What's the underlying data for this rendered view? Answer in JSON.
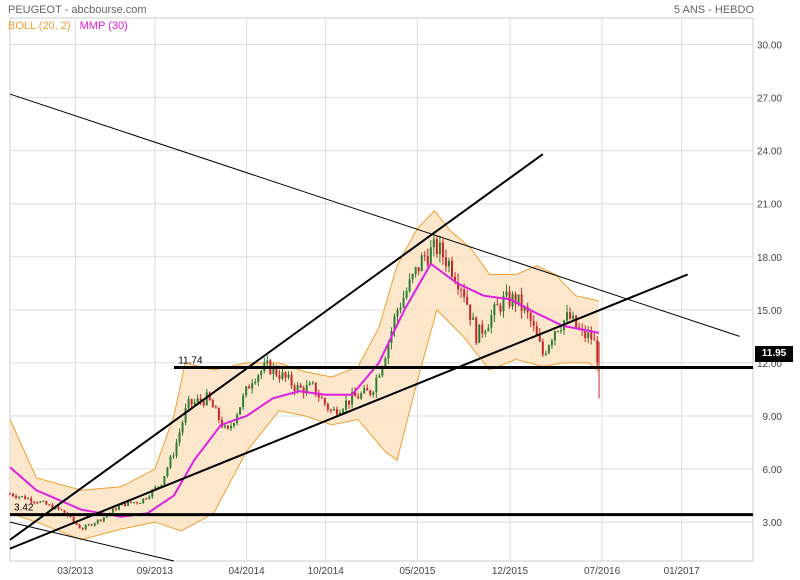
{
  "header": {
    "title": "PEUGEOT - abcbourse.com",
    "period": "5 ANS - HEBDO"
  },
  "legend": [
    {
      "label": "BOLL (20, 2)",
      "color": "#f0a030"
    },
    {
      "label": "MMP (30)",
      "color": "#e020e0"
    }
  ],
  "colors": {
    "band_fill": "#fbe3c4",
    "band_line": "#f0a030",
    "ma": "#e020e0",
    "up": "#2e7d32",
    "down": "#c62828",
    "grid": "#dddddd"
  },
  "chart_data": {
    "type": "line",
    "title": "PEUGEOT - abcbourse.com",
    "subtitle": "5 ANS - HEBDO",
    "x_ticks": [
      "03/2013",
      "09/2013",
      "04/2014",
      "10/2014",
      "05/2015",
      "12/2015",
      "07/2016",
      "01/2017"
    ],
    "y_ticks": [
      "3.00",
      "6.00",
      "9.00",
      "12.00",
      "15.00",
      "18.00",
      "21.00",
      "24.00",
      "27.00",
      "30.00"
    ],
    "ylim": [
      0.8,
      31.5
    ],
    "current_price": "11.95",
    "hlines": [
      {
        "label": "11.74",
        "value": 11.74
      },
      {
        "label": "3.42",
        "value": 3.42
      }
    ],
    "price_path": [
      {
        "date": "2012-10-01",
        "value": 4.6
      },
      {
        "date": "2012-12-01",
        "value": 4.2
      },
      {
        "date": "2013-02-01",
        "value": 3.6
      },
      {
        "date": "2013-03-15",
        "value": 2.6
      },
      {
        "date": "2013-05-01",
        "value": 3.2
      },
      {
        "date": "2013-06-15",
        "value": 4.0
      },
      {
        "date": "2013-08-01",
        "value": 4.2
      },
      {
        "date": "2013-09-15",
        "value": 5.2
      },
      {
        "date": "2013-10-15",
        "value": 7.0
      },
      {
        "date": "2013-11-15",
        "value": 9.6
      },
      {
        "date": "2014-01-01",
        "value": 10.0
      },
      {
        "date": "2014-02-15",
        "value": 8.0
      },
      {
        "date": "2014-03-15",
        "value": 9.5
      },
      {
        "date": "2014-04-15",
        "value": 11.2
      },
      {
        "date": "2014-05-20",
        "value": 11.8
      },
      {
        "date": "2014-06-20",
        "value": 11.3
      },
      {
        "date": "2014-08-01",
        "value": 10.5
      },
      {
        "date": "2014-09-01",
        "value": 10.6
      },
      {
        "date": "2014-10-15",
        "value": 9.2
      },
      {
        "date": "2014-12-01",
        "value": 10.0
      },
      {
        "date": "2015-01-15",
        "value": 10.4
      },
      {
        "date": "2015-02-15",
        "value": 12.5
      },
      {
        "date": "2015-03-15",
        "value": 15.0
      },
      {
        "date": "2015-04-15",
        "value": 16.5
      },
      {
        "date": "2015-05-15",
        "value": 18.0
      },
      {
        "date": "2015-06-15",
        "value": 18.5
      },
      {
        "date": "2015-07-15",
        "value": 17.6
      },
      {
        "date": "2015-08-15",
        "value": 16.2
      },
      {
        "date": "2015-09-15",
        "value": 13.5
      },
      {
        "date": "2015-10-15",
        "value": 14.5
      },
      {
        "date": "2015-11-15",
        "value": 15.5
      },
      {
        "date": "2015-12-15",
        "value": 15.6
      },
      {
        "date": "2016-01-15",
        "value": 14.5
      },
      {
        "date": "2016-02-15",
        "value": 12.5
      },
      {
        "date": "2016-03-15",
        "value": 14.0
      },
      {
        "date": "2016-04-15",
        "value": 14.6
      },
      {
        "date": "2016-05-15",
        "value": 13.6
      },
      {
        "date": "2016-06-10",
        "value": 13.4
      },
      {
        "date": "2016-06-24",
        "value": 11.95
      }
    ],
    "bollinger_upper": [
      {
        "date": "2012-10-01",
        "value": 8.8
      },
      {
        "date": "2012-12-01",
        "value": 5.5
      },
      {
        "date": "2013-03-15",
        "value": 4.8
      },
      {
        "date": "2013-06-15",
        "value": 5.0
      },
      {
        "date": "2013-09-01",
        "value": 6.0
      },
      {
        "date": "2013-10-15",
        "value": 9.0
      },
      {
        "date": "2013-11-10",
        "value": 12.0
      },
      {
        "date": "2014-01-15",
        "value": 11.6
      },
      {
        "date": "2014-04-01",
        "value": 12.0
      },
      {
        "date": "2014-06-15",
        "value": 12.0
      },
      {
        "date": "2014-08-15",
        "value": 11.5
      },
      {
        "date": "2014-10-15",
        "value": 11.2
      },
      {
        "date": "2014-12-15",
        "value": 11.8
      },
      {
        "date": "2015-02-01",
        "value": 14.0
      },
      {
        "date": "2015-03-15",
        "value": 17.5
      },
      {
        "date": "2015-05-01",
        "value": 19.6
      },
      {
        "date": "2015-06-10",
        "value": 20.6
      },
      {
        "date": "2015-07-15",
        "value": 19.5
      },
      {
        "date": "2015-09-01",
        "value": 18.5
      },
      {
        "date": "2015-10-15",
        "value": 17.0
      },
      {
        "date": "2015-12-15",
        "value": 17.0
      },
      {
        "date": "2016-02-01",
        "value": 17.5
      },
      {
        "date": "2016-03-15",
        "value": 17.0
      },
      {
        "date": "2016-05-01",
        "value": 15.8
      },
      {
        "date": "2016-06-24",
        "value": 15.5
      }
    ],
    "bollinger_lower": [
      {
        "date": "2012-10-01",
        "value": 3.5
      },
      {
        "date": "2012-12-01",
        "value": 3.0
      },
      {
        "date": "2013-03-15",
        "value": 2.0
      },
      {
        "date": "2013-06-15",
        "value": 2.6
      },
      {
        "date": "2013-09-01",
        "value": 3.0
      },
      {
        "date": "2013-11-01",
        "value": 2.5
      },
      {
        "date": "2014-01-15",
        "value": 3.5
      },
      {
        "date": "2014-04-01",
        "value": 7.0
      },
      {
        "date": "2014-06-15",
        "value": 9.3
      },
      {
        "date": "2014-08-15",
        "value": 9.0
      },
      {
        "date": "2014-10-15",
        "value": 8.5
      },
      {
        "date": "2014-12-15",
        "value": 8.8
      },
      {
        "date": "2015-02-15",
        "value": 7.0
      },
      {
        "date": "2015-03-15",
        "value": 6.5
      },
      {
        "date": "2015-05-01",
        "value": 11.0
      },
      {
        "date": "2015-06-15",
        "value": 15.0
      },
      {
        "date": "2015-08-15",
        "value": 13.5
      },
      {
        "date": "2015-10-15",
        "value": 11.6
      },
      {
        "date": "2015-12-15",
        "value": 12.2
      },
      {
        "date": "2016-02-15",
        "value": 11.8
      },
      {
        "date": "2016-04-01",
        "value": 12.0
      },
      {
        "date": "2016-06-01",
        "value": 12.0
      },
      {
        "date": "2016-06-24",
        "value": 11.5
      }
    ],
    "moving_average": [
      {
        "date": "2012-10-01",
        "value": 6.1
      },
      {
        "date": "2012-12-01",
        "value": 4.8
      },
      {
        "date": "2013-03-15",
        "value": 3.7
      },
      {
        "date": "2013-06-15",
        "value": 3.3
      },
      {
        "date": "2013-08-15",
        "value": 3.5
      },
      {
        "date": "2013-10-15",
        "value": 4.5
      },
      {
        "date": "2013-12-01",
        "value": 6.5
      },
      {
        "date": "2014-02-01",
        "value": 8.5
      },
      {
        "date": "2014-04-01",
        "value": 9.0
      },
      {
        "date": "2014-06-01",
        "value": 10.0
      },
      {
        "date": "2014-08-01",
        "value": 10.4
      },
      {
        "date": "2014-10-01",
        "value": 10.2
      },
      {
        "date": "2014-12-01",
        "value": 10.2
      },
      {
        "date": "2015-02-01",
        "value": 12.0
      },
      {
        "date": "2015-04-01",
        "value": 15.0
      },
      {
        "date": "2015-06-01",
        "value": 17.6
      },
      {
        "date": "2015-08-01",
        "value": 16.5
      },
      {
        "date": "2015-10-01",
        "value": 15.8
      },
      {
        "date": "2015-12-01",
        "value": 15.6
      },
      {
        "date": "2016-02-01",
        "value": 14.8
      },
      {
        "date": "2016-04-01",
        "value": 14.1
      },
      {
        "date": "2016-06-24",
        "value": 13.7
      }
    ],
    "trendlines": [
      {
        "name": "support-1",
        "from": {
          "date": "2012-10-01",
          "value": 1.5
        },
        "to": {
          "date": "2017-01-15",
          "value": 17.0
        },
        "width": 2
      },
      {
        "name": "support-2",
        "from": {
          "date": "2012-10-01",
          "value": 2.0
        },
        "to": {
          "date": "2016-02-15",
          "value": 23.8
        },
        "width": 2
      },
      {
        "name": "resistance",
        "from": {
          "date": "2012-10-01",
          "value": 27.2
        },
        "to": {
          "date": "2017-05-15",
          "value": 13.5
        },
        "width": 1
      },
      {
        "name": "lower-channel",
        "from": {
          "date": "2012-10-01",
          "value": 3.0
        },
        "to": {
          "date": "2013-10-15",
          "value": 0.8
        },
        "width": 1
      }
    ]
  }
}
